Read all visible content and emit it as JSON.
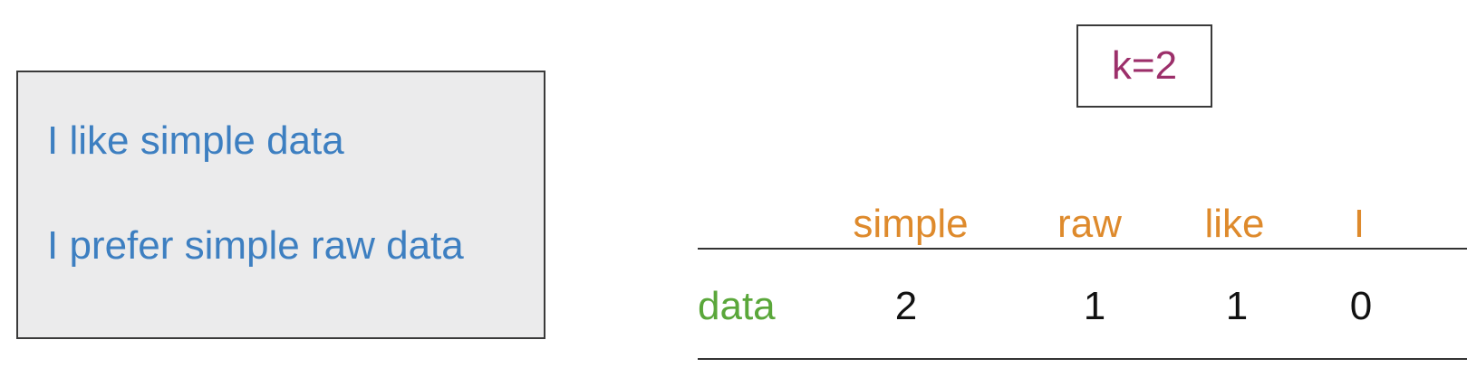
{
  "corpus": {
    "sentences": [
      "I like simple data",
      "I prefer simple raw data"
    ]
  },
  "window": {
    "k_label": "k=2"
  },
  "table": {
    "row_label": "data",
    "columns": [
      "simple",
      "raw",
      "like",
      "I"
    ],
    "counts": [
      "2",
      "1",
      "1",
      "0"
    ]
  },
  "colors": {
    "corpus_text": "#3d7fc1",
    "k_text": "#9c2f6a",
    "column_header": "#de8a2c",
    "row_header": "#5aa73a",
    "corpus_background": "#ebebec"
  }
}
